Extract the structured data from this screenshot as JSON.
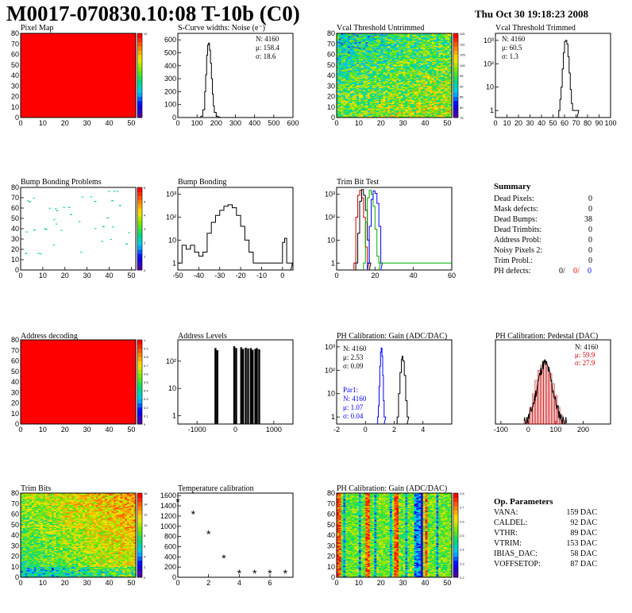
{
  "header": {
    "title": "M0017-070830.10:08 T-10b (C0)",
    "datetime": "Thu Oct 30 19:18:23 2008"
  },
  "panels": {
    "pixel_map": {
      "title": "Pixel Map"
    },
    "scurve": {
      "title": "S-Curve widths: Noise (e⁻)",
      "stats": [
        "N: 4160",
        "μ: 158.4",
        "σ: 18.6"
      ]
    },
    "vcal_untrimmed": {
      "title": "Vcal Threshold Untrimmed"
    },
    "vcal_trimmed": {
      "title": "Vcal Threshold Trimmed",
      "stats": [
        "N: 4160",
        "μ: 60.5",
        "σ:  1.3"
      ]
    },
    "bump_problems": {
      "title": "Bump Bonding Problems"
    },
    "bump_bonding": {
      "title": "Bump Bonding"
    },
    "trim_bit_test": {
      "title": "Trim Bit Test"
    },
    "address_decoding": {
      "title": "Address decoding"
    },
    "address_levels": {
      "title": "Address Levels"
    },
    "ph_gain": {
      "title": "PH Calibration: Gain (ADC/DAC)",
      "stats": [
        "N: 4160",
        "μ: 2.53",
        "σ: 0.09"
      ],
      "par1": [
        "Par1:",
        "N: 4160",
        "μ: 1.07",
        "σ: 0.04"
      ]
    },
    "ph_pedestal": {
      "title": "PH Calibration: Pedestal (DAC)",
      "stats": [
        "N: 4160",
        "μ: 59.9",
        "σ: 27.9"
      ]
    },
    "trim_bits": {
      "title": "Trim Bits"
    },
    "temperature": {
      "title": "Temperature calibration"
    },
    "ph_gain_map": {
      "title": "PH Calibration: Gain (ADC/DAC)"
    }
  },
  "summary": {
    "title": "Summary",
    "rows": [
      {
        "label": "Dead Pixels:",
        "value": "0"
      },
      {
        "label": "Mask defects:",
        "value": "0"
      },
      {
        "label": "Dead Bumps:",
        "value": "38"
      },
      {
        "label": "Dead Trimbits:",
        "value": "0"
      },
      {
        "label": "Address Probl:",
        "value": "0"
      },
      {
        "label": "Noisy Pixels 2:",
        "value": "0"
      },
      {
        "label": "Trim Probl.:",
        "value": "0"
      }
    ],
    "ph_defects": {
      "label": "PH defects:",
      "v1": "0/",
      "v2": "0/",
      "v3": "0"
    }
  },
  "op_parameters": {
    "title": "Op. Parameters",
    "rows": [
      {
        "label": "VANA:",
        "value": "159 DAC"
      },
      {
        "label": "CALDEL:",
        "value": "92 DAC"
      },
      {
        "label": "VTHR:",
        "value": "89 DAC"
      },
      {
        "label": "VTRIM:",
        "value": "153 DAC"
      },
      {
        "label": "IBIAS_DAC:",
        "value": "58 DAC"
      },
      {
        "label": "VOFFSETOP:",
        "value": "87 DAC"
      }
    ]
  },
  "colors": {
    "summary_red": "#ff0000",
    "summary_blue": "#0000ff",
    "par1_blue": "#0000ff",
    "ped_red": "#cc0000"
  },
  "chart_data": [
    {
      "type": "heatmap",
      "title": "Pixel Map",
      "xlim": [
        0,
        52
      ],
      "ylim": [
        0,
        80
      ],
      "xticks": [
        "0",
        "10",
        "20",
        "30",
        "40",
        "50"
      ],
      "yticks": [
        "0",
        "10",
        "20",
        "30",
        "40",
        "50",
        "60",
        "70",
        "80"
      ],
      "fill": "uniform red (all pixels at maximum)",
      "colorbar": [
        "10"
      ]
    },
    {
      "type": "line",
      "title": "S-Curve widths: Noise (e⁻)",
      "xlim": [
        0,
        600
      ],
      "ylim": [
        0,
        650
      ],
      "xticks": [
        "0",
        "100",
        "200",
        "300",
        "400",
        "500",
        "600"
      ],
      "yticks": [
        "0",
        "100",
        "200",
        "300",
        "400",
        "500",
        "600"
      ],
      "x": [
        100,
        120,
        130,
        140,
        145,
        150,
        155,
        160,
        165,
        170,
        175,
        180,
        185,
        190,
        200,
        210,
        220
      ],
      "y": [
        0,
        10,
        60,
        200,
        330,
        480,
        560,
        575,
        520,
        420,
        300,
        180,
        90,
        40,
        10,
        3,
        0
      ]
    },
    {
      "type": "heatmap",
      "title": "Vcal Threshold Untrimmed",
      "xlim": [
        0,
        52
      ],
      "ylim": [
        0,
        80
      ],
      "xticks": [
        "0",
        "10",
        "20",
        "30",
        "40",
        "50"
      ],
      "yticks": [
        "0",
        "10",
        "20",
        "30",
        "40",
        "50",
        "60",
        "70",
        "80"
      ],
      "colorbar": [
        "75",
        "80",
        "85",
        "90",
        "95",
        "100",
        "105",
        "110",
        "115"
      ]
    },
    {
      "type": "line",
      "title": "Vcal Threshold Trimmed",
      "log_y": true,
      "xlim": [
        0,
        100
      ],
      "ylim": [
        0.5,
        2000
      ],
      "xticks": [
        "0",
        "10",
        "20",
        "30",
        "40",
        "50",
        "60",
        "70",
        "80",
        "90",
        "100"
      ],
      "yticks": [
        "1",
        "10",
        "10²",
        "10³"
      ],
      "x": [
        55,
        56,
        57,
        58,
        59,
        60,
        61,
        62,
        63,
        64,
        65,
        66,
        67,
        70,
        71
      ],
      "y": [
        1,
        3,
        10,
        60,
        300,
        900,
        1000,
        700,
        200,
        40,
        8,
        2,
        1,
        1,
        1
      ]
    },
    {
      "type": "scatter",
      "title": "Bump Bonding Problems",
      "xlim": [
        0,
        52
      ],
      "ylim": [
        0,
        80
      ],
      "xticks": [
        "0",
        "10",
        "20",
        "30",
        "40",
        "50"
      ],
      "yticks": [
        "0",
        "10",
        "20",
        "30",
        "40",
        "50",
        "60",
        "70",
        "80"
      ],
      "colorbar": [
        "0",
        "1",
        "2",
        "3",
        "4",
        "5",
        "6"
      ]
    },
    {
      "type": "line",
      "title": "Bump Bonding",
      "log_y": true,
      "xlim": [
        -50,
        5
      ],
      "ylim": [
        0.5,
        2000
      ],
      "xticks": [
        "-50",
        "-40",
        "-30",
        "-20",
        "-10",
        "0"
      ],
      "yticks": [
        "1",
        "10",
        "10²",
        "10³"
      ],
      "x": [
        -50,
        -48,
        -46,
        -44,
        -42,
        -40,
        -38,
        -36,
        -34,
        -32,
        -30,
        -28,
        -26,
        -24,
        -22,
        -20,
        -18,
        -16,
        -14,
        -12,
        -10,
        -8,
        -6,
        -4,
        -2,
        0,
        1,
        2,
        4
      ],
      "y": [
        1,
        6,
        4,
        6,
        3,
        2,
        3,
        20,
        60,
        120,
        200,
        300,
        350,
        260,
        120,
        40,
        10,
        3,
        1,
        1,
        1,
        1,
        1,
        1,
        1,
        8,
        12,
        1,
        1
      ]
    },
    {
      "type": "line",
      "title": "Trim Bit Test",
      "log_y": true,
      "xlim": [
        0,
        60
      ],
      "ylim": [
        0.5,
        2000
      ],
      "xticks": [
        "0",
        "20",
        "40",
        "60"
      ],
      "yticks": [
        "1",
        "10",
        "10²",
        "10³"
      ],
      "series": [
        {
          "color": "#cc0000",
          "x": [
            9,
            10,
            11,
            12,
            13,
            14,
            15,
            16
          ],
          "y": [
            1,
            100,
            900,
            1500,
            700,
            100,
            5,
            1
          ]
        },
        {
          "color": "#000000",
          "x": [
            10,
            11,
            12,
            13,
            14,
            15,
            16,
            17
          ],
          "y": [
            1,
            20,
            500,
            1600,
            900,
            200,
            10,
            1
          ]
        },
        {
          "color": "#00aa00",
          "x": [
            14,
            15,
            16,
            17,
            18,
            19,
            20,
            21,
            22
          ],
          "y": [
            1,
            60,
            700,
            1500,
            1000,
            300,
            30,
            2,
            1
          ]
        },
        {
          "color": "#0000ff",
          "x": [
            16,
            17,
            18,
            19,
            20,
            21,
            22,
            23
          ],
          "y": [
            1,
            40,
            600,
            1400,
            1100,
            400,
            40,
            1
          ]
        }
      ]
    },
    {
      "type": "heatmap",
      "title": "Address decoding",
      "xlim": [
        0,
        52
      ],
      "ylim": [
        0,
        80
      ],
      "xticks": [
        "0",
        "10",
        "20",
        "30",
        "40",
        "50"
      ],
      "yticks": [
        "0",
        "10",
        "20",
        "30",
        "40",
        "50",
        "60",
        "70",
        "80"
      ],
      "fill": "uniform red",
      "colorbar": [
        "0",
        "0.1",
        "0.2",
        "0.3",
        "0.4",
        "0.5",
        "0.6",
        "0.7",
        "0.8",
        "0.9",
        "1"
      ]
    },
    {
      "type": "bar",
      "title": "Address Levels",
      "log_y": true,
      "xlim": [
        -1500,
        1500
      ],
      "ylim": [
        0.5,
        600
      ],
      "xticks": [
        "-1000",
        "0",
        "1000"
      ],
      "yticks": [
        "1",
        "10",
        "10²"
      ],
      "x": [
        -520,
        -470,
        -30,
        20,
        150,
        200,
        270,
        330,
        400,
        450,
        520,
        560,
        620
      ],
      "y": [
        300,
        250,
        350,
        300,
        320,
        280,
        310,
        290,
        300,
        260,
        280,
        300,
        270
      ]
    },
    {
      "type": "line",
      "title": "PH Calibration: Gain (ADC/DAC)",
      "log_y": true,
      "xlim": [
        -2,
        6
      ],
      "ylim": [
        0.5,
        2000
      ],
      "xticks": [
        "-2",
        "0",
        "2",
        "4"
      ],
      "yticks": [
        "1",
        "10",
        "10²",
        "10³"
      ],
      "series": [
        {
          "name": "Par1",
          "color": "#0000ff",
          "x": [
            0.85,
            0.9,
            0.95,
            1.0,
            1.05,
            1.1,
            1.15,
            1.2,
            1.25,
            1.3
          ],
          "y": [
            1,
            3,
            20,
            150,
            600,
            900,
            400,
            60,
            5,
            1
          ]
        },
        {
          "color": "#000000",
          "x": [
            2.2,
            2.3,
            2.4,
            2.5,
            2.55,
            2.6,
            2.7,
            2.8,
            2.9
          ],
          "y": [
            1,
            10,
            80,
            300,
            400,
            250,
            60,
            5,
            1
          ]
        }
      ]
    },
    {
      "type": "bar",
      "title": "PH Calibration: Pedestal (DAC)",
      "xlim": [
        -120,
        300
      ],
      "ylim": [
        0,
        500
      ],
      "xticks": [
        "-100",
        "0",
        "100",
        "200"
      ],
      "x": [
        -10,
        0,
        10,
        20,
        30,
        40,
        50,
        60,
        70,
        80,
        90,
        100,
        110,
        120,
        130
      ],
      "y": [
        20,
        40,
        100,
        180,
        260,
        320,
        350,
        360,
        340,
        300,
        240,
        170,
        100,
        50,
        20
      ]
    },
    {
      "type": "heatmap",
      "title": "Trim Bits",
      "xlim": [
        0,
        52
      ],
      "ylim": [
        0,
        80
      ],
      "xticks": [
        "0",
        "10",
        "20",
        "30",
        "40",
        "50"
      ],
      "yticks": [
        "0",
        "10",
        "20",
        "30",
        "40",
        "50",
        "60",
        "70",
        "80"
      ],
      "colorbar": [
        "0",
        "2",
        "4",
        "6",
        "8",
        "10",
        "12",
        "14",
        "16"
      ]
    },
    {
      "type": "scatter",
      "title": "Temperature calibration",
      "xlim": [
        0,
        7.5
      ],
      "ylim": [
        0,
        1650
      ],
      "xticks": [
        "0",
        "2",
        "4",
        "6"
      ],
      "yticks": [
        "0",
        "200",
        "400",
        "600",
        "800",
        "1000",
        "1200",
        "1400",
        "1600"
      ],
      "x": [
        0,
        1,
        2,
        3,
        4,
        5,
        6,
        7
      ],
      "y": [
        1480,
        1240,
        850,
        370,
        80,
        80,
        80,
        80
      ]
    },
    {
      "type": "heatmap",
      "title": "PH Calibration: Gain (ADC/DAC)",
      "xlim": [
        0,
        52
      ],
      "ylim": [
        0,
        80
      ],
      "xticks": [
        "0",
        "10",
        "20",
        "30",
        "40",
        "50"
      ],
      "yticks": [
        "0",
        "10",
        "20",
        "30",
        "40",
        "50",
        "60",
        "70",
        "80"
      ],
      "colorbar": [
        "2.2",
        "2.3",
        "2.4",
        "2.5",
        "2.6",
        "2.7",
        "2.8"
      ]
    }
  ]
}
